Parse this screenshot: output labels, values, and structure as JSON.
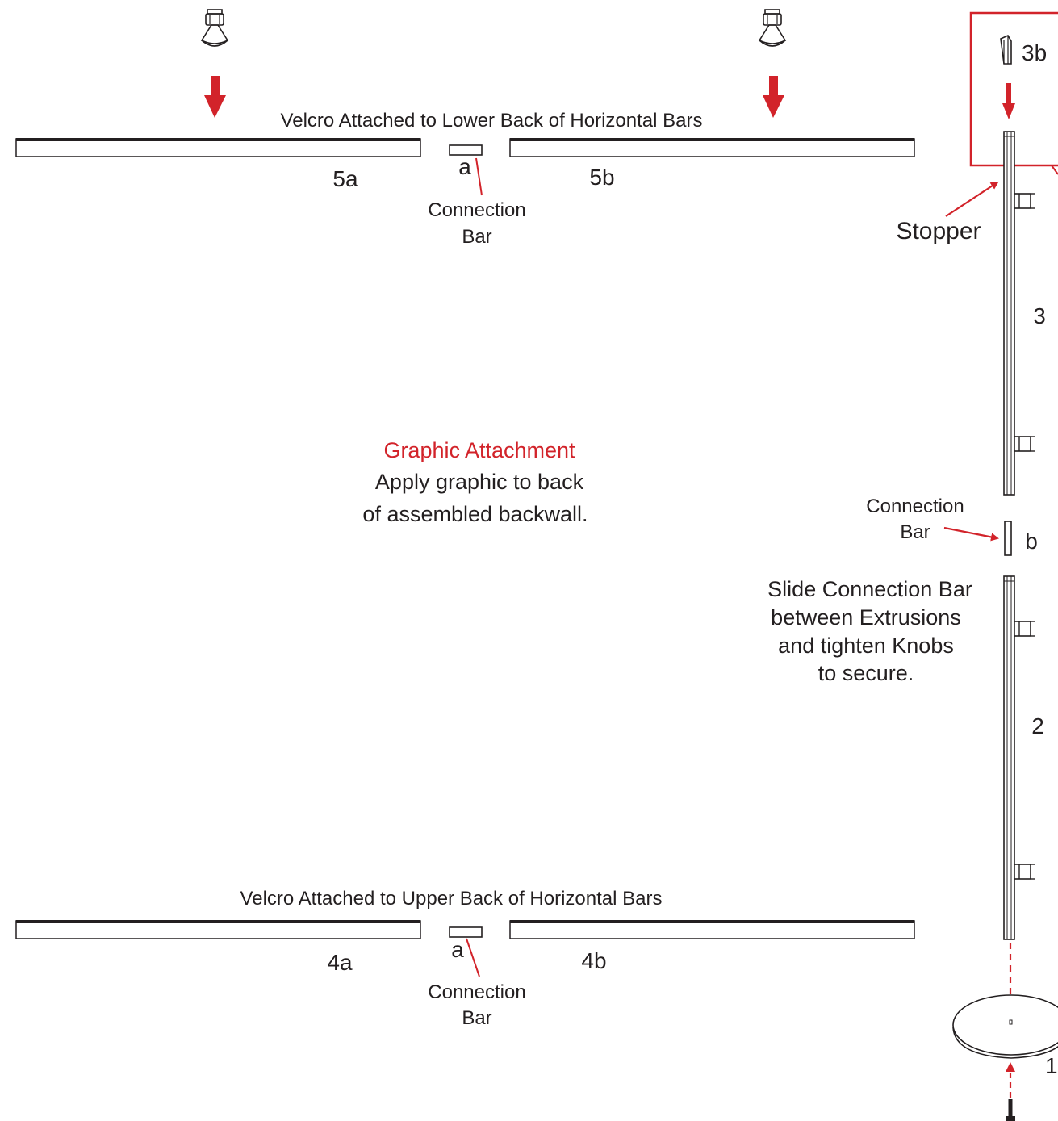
{
  "colors": {
    "accent_red": "#d2232a",
    "ink": "#231f20"
  },
  "icons": [
    "knob-icon",
    "bolt-icon",
    "arrow-down-icon",
    "stopper-clip-icon"
  ],
  "top": {
    "velcro_note": "Velcro Attached to Lower Back of Horizontal Bars",
    "left_bar_label": "5a",
    "right_bar_label": "5b",
    "connector_label": "a",
    "connector_caption_1": "Connection",
    "connector_caption_2": "Bar"
  },
  "bottom": {
    "velcro_note": "Velcro Attached to Upper Back of Horizontal Bars",
    "left_bar_label": "4a",
    "right_bar_label": "4b",
    "connector_label": "a",
    "connector_caption_1": "Connection",
    "connector_caption_2": "Bar"
  },
  "graphic": {
    "title": "Graphic Attachment",
    "line1": "Apply graphic to back",
    "line2": "of assembled backwall."
  },
  "vertical": {
    "stopper_part_label": "3b",
    "stopper_caption": "Stopper",
    "upper_extrusion_label": "3",
    "connector_caption_1": "Connection",
    "connector_caption_2": "Bar",
    "connector_label": "b",
    "instruction_1": "Slide Connection Bar",
    "instruction_2": "between Extrusions",
    "instruction_3": "and tighten Knobs",
    "instruction_4": "to secure.",
    "lower_extrusion_label": "2",
    "base_label": "1"
  }
}
